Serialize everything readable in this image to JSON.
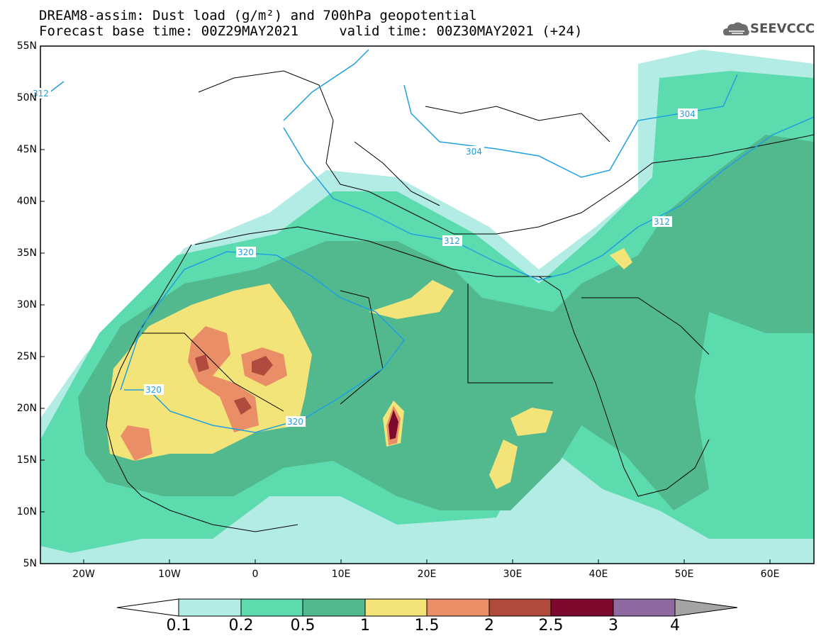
{
  "title_line1": "DREAM8-assim: Dust load (g/m²) and 700hPa geopotential",
  "title_line2": "Forecast base time: 00Z29MAY2021     valid time: 00Z30MAY2021 (+24)",
  "logo": {
    "text": "SEEVCCC",
    "icon": "cloud-icon"
  },
  "lat_labels": [
    "55N",
    "50N",
    "45N",
    "40N",
    "35N",
    "30N",
    "25N",
    "20N",
    "15N",
    "10N",
    "5N"
  ],
  "lon_labels": [
    "20W",
    "10W",
    "0",
    "10E",
    "20E",
    "30E",
    "40E",
    "50E",
    "60E"
  ],
  "contour_labels": [
    "312",
    "304",
    "304",
    "312",
    "312",
    "320",
    "320",
    "320"
  ],
  "colorbar": {
    "labels": [
      "0.1",
      "0.2",
      "0.5",
      "1",
      "1.5",
      "2",
      "2.5",
      "3",
      "4"
    ],
    "colors": [
      "#ffffff",
      "#b3ece4",
      "#5cdcae",
      "#52b98f",
      "#f3e47a",
      "#e98e67",
      "#b04a3e",
      "#7d0a2e",
      "#8e6aa0",
      "#a4a4a4"
    ]
  }
}
